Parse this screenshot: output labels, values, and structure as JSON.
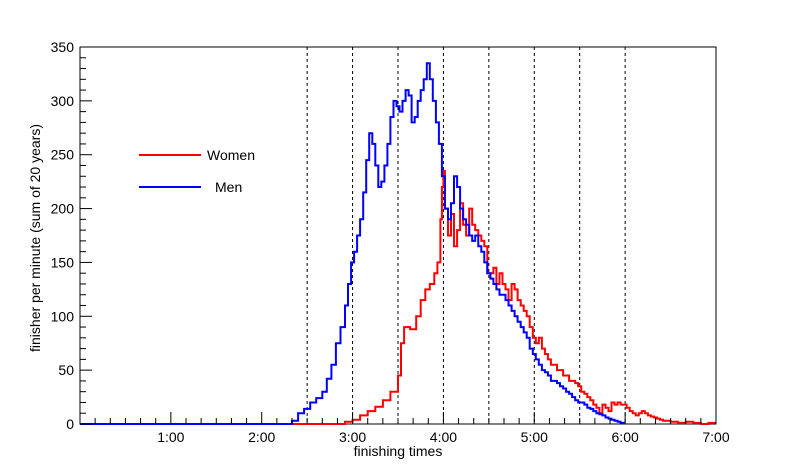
{
  "chart_data": {
    "type": "line",
    "title": "",
    "xlabel": "finishing times",
    "ylabel": "finisher per minute (sum of 20 years)",
    "xlim": [
      0,
      420
    ],
    "ylim": [
      0,
      350
    ],
    "x_unit": "minutes",
    "x_ticks": [
      {
        "value": 60,
        "label": "1:00"
      },
      {
        "value": 120,
        "label": "2:00"
      },
      {
        "value": 180,
        "label": "3:00"
      },
      {
        "value": 240,
        "label": "4:00"
      },
      {
        "value": 300,
        "label": "5:00"
      },
      {
        "value": 360,
        "label": "6:00"
      },
      {
        "value": 420,
        "label": "7:00"
      }
    ],
    "y_ticks": [
      0,
      50,
      100,
      150,
      200,
      250,
      300,
      350
    ],
    "vertical_reference_lines": [
      150,
      180,
      210,
      240,
      270,
      300,
      330,
      360
    ],
    "legend": {
      "placement": "upper-left"
    },
    "series": [
      {
        "name": "Women",
        "color": "#ff0000",
        "points": [
          [
            0,
            0
          ],
          [
            170,
            0
          ],
          [
            175,
            2
          ],
          [
            180,
            4
          ],
          [
            185,
            8
          ],
          [
            190,
            12
          ],
          [
            195,
            16
          ],
          [
            200,
            22
          ],
          [
            205,
            30
          ],
          [
            210,
            45
          ],
          [
            212,
            75
          ],
          [
            214,
            90
          ],
          [
            218,
            88
          ],
          [
            222,
            100
          ],
          [
            225,
            115
          ],
          [
            228,
            125
          ],
          [
            231,
            130
          ],
          [
            234,
            140
          ],
          [
            236,
            150
          ],
          [
            238,
            190
          ],
          [
            239,
            220
          ],
          [
            240,
            235
          ],
          [
            241,
            200
          ],
          [
            243,
            175
          ],
          [
            245,
            195
          ],
          [
            247,
            165
          ],
          [
            249,
            180
          ],
          [
            251,
            205
          ],
          [
            253,
            185
          ],
          [
            255,
            175
          ],
          [
            257,
            200
          ],
          [
            259,
            185
          ],
          [
            261,
            180
          ],
          [
            263,
            175
          ],
          [
            265,
            170
          ],
          [
            267,
            165
          ],
          [
            269,
            140
          ],
          [
            271,
            140
          ],
          [
            273,
            145
          ],
          [
            275,
            130
          ],
          [
            277,
            140
          ],
          [
            279,
            130
          ],
          [
            281,
            125
          ],
          [
            283,
            115
          ],
          [
            285,
            130
          ],
          [
            287,
            125
          ],
          [
            289,
            115
          ],
          [
            291,
            110
          ],
          [
            293,
            105
          ],
          [
            295,
            100
          ],
          [
            297,
            90
          ],
          [
            299,
            80
          ],
          [
            301,
            75
          ],
          [
            303,
            80
          ],
          [
            305,
            70
          ],
          [
            307,
            65
          ],
          [
            309,
            60
          ],
          [
            311,
            55
          ],
          [
            313,
            55
          ],
          [
            315,
            50
          ],
          [
            317,
            50
          ],
          [
            319,
            45
          ],
          [
            321,
            45
          ],
          [
            323,
            40
          ],
          [
            325,
            40
          ],
          [
            327,
            38
          ],
          [
            329,
            35
          ],
          [
            331,
            30
          ],
          [
            333,
            28
          ],
          [
            335,
            25
          ],
          [
            337,
            22
          ],
          [
            339,
            18
          ],
          [
            341,
            15
          ],
          [
            343,
            10
          ],
          [
            345,
            18
          ],
          [
            347,
            15
          ],
          [
            349,
            12
          ],
          [
            351,
            20
          ],
          [
            353,
            18
          ],
          [
            355,
            20
          ],
          [
            357,
            18
          ],
          [
            359,
            18
          ],
          [
            361,
            15
          ],
          [
            363,
            12
          ],
          [
            365,
            10
          ],
          [
            367,
            8
          ],
          [
            369,
            10
          ],
          [
            371,
            12
          ],
          [
            373,
            10
          ],
          [
            375,
            8
          ],
          [
            377,
            7
          ],
          [
            379,
            6
          ],
          [
            381,
            5
          ],
          [
            383,
            4
          ],
          [
            385,
            3
          ],
          [
            387,
            3
          ],
          [
            390,
            2
          ],
          [
            395,
            1
          ],
          [
            400,
            2
          ],
          [
            405,
            1
          ],
          [
            410,
            0
          ],
          [
            415,
            1
          ],
          [
            420,
            1
          ]
        ]
      },
      {
        "name": "Men",
        "color": "#0000ff",
        "points": [
          [
            0,
            0
          ],
          [
            135,
            0
          ],
          [
            140,
            3
          ],
          [
            144,
            10
          ],
          [
            148,
            14
          ],
          [
            152,
            20
          ],
          [
            156,
            24
          ],
          [
            160,
            30
          ],
          [
            163,
            42
          ],
          [
            166,
            55
          ],
          [
            169,
            75
          ],
          [
            172,
            90
          ],
          [
            175,
            110
          ],
          [
            177,
            130
          ],
          [
            179,
            150
          ],
          [
            181,
            160
          ],
          [
            183,
            175
          ],
          [
            185,
            190
          ],
          [
            187,
            215
          ],
          [
            189,
            245
          ],
          [
            191,
            270
          ],
          [
            193,
            260
          ],
          [
            195,
            240
          ],
          [
            197,
            220
          ],
          [
            199,
            225
          ],
          [
            201,
            240
          ],
          [
            203,
            260
          ],
          [
            205,
            285
          ],
          [
            207,
            300
          ],
          [
            209,
            295
          ],
          [
            211,
            290
          ],
          [
            213,
            300
          ],
          [
            215,
            310
          ],
          [
            217,
            305
          ],
          [
            219,
            280
          ],
          [
            221,
            285
          ],
          [
            223,
            300
          ],
          [
            225,
            310
          ],
          [
            227,
            320
          ],
          [
            229,
            335
          ],
          [
            231,
            320
          ],
          [
            233,
            300
          ],
          [
            235,
            280
          ],
          [
            237,
            260
          ],
          [
            239,
            230
          ],
          [
            241,
            200
          ],
          [
            243,
            190
          ],
          [
            245,
            205
          ],
          [
            247,
            230
          ],
          [
            249,
            220
          ],
          [
            251,
            200
          ],
          [
            253,
            190
          ],
          [
            255,
            185
          ],
          [
            257,
            175
          ],
          [
            259,
            170
          ],
          [
            261,
            175
          ],
          [
            263,
            165
          ],
          [
            265,
            160
          ],
          [
            267,
            150
          ],
          [
            269,
            140
          ],
          [
            271,
            135
          ],
          [
            273,
            130
          ],
          [
            275,
            125
          ],
          [
            277,
            120
          ],
          [
            279,
            120
          ],
          [
            281,
            115
          ],
          [
            283,
            110
          ],
          [
            285,
            105
          ],
          [
            287,
            100
          ],
          [
            289,
            95
          ],
          [
            291,
            90
          ],
          [
            293,
            85
          ],
          [
            295,
            80
          ],
          [
            297,
            70
          ],
          [
            299,
            65
          ],
          [
            301,
            60
          ],
          [
            303,
            55
          ],
          [
            305,
            50
          ],
          [
            307,
            48
          ],
          [
            309,
            45
          ],
          [
            311,
            40
          ],
          [
            313,
            40
          ],
          [
            315,
            38
          ],
          [
            317,
            35
          ],
          [
            319,
            33
          ],
          [
            321,
            30
          ],
          [
            323,
            28
          ],
          [
            325,
            25
          ],
          [
            327,
            22
          ],
          [
            329,
            20
          ],
          [
            331,
            20
          ],
          [
            333,
            18
          ],
          [
            335,
            15
          ],
          [
            337,
            14
          ],
          [
            339,
            12
          ],
          [
            341,
            10
          ],
          [
            343,
            9
          ],
          [
            345,
            8
          ],
          [
            347,
            6
          ],
          [
            349,
            5
          ],
          [
            351,
            4
          ],
          [
            353,
            3
          ],
          [
            355,
            2
          ],
          [
            357,
            1
          ],
          [
            359,
            0
          ]
        ]
      }
    ]
  }
}
